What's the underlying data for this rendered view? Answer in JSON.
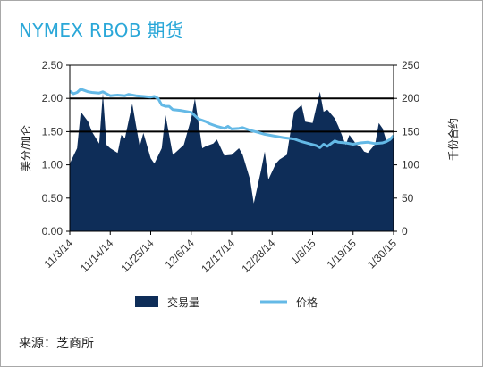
{
  "title": "NYMEX RBOB 期货",
  "source": "来源：芝商所",
  "colors": {
    "volume": "#0e2d58",
    "price": "#64b9e6",
    "title": "#2aa7d8",
    "grid": "#000000"
  },
  "chart_data": {
    "type": "area",
    "title": "NYMEX RBOB 期货",
    "x_tick_labels": [
      "11/3/14",
      "11/14/14",
      "11/25/14",
      "12/6/14",
      "12/17/14",
      "12/28/14",
      "1/8/15",
      "1/19/15",
      "1/30/15"
    ],
    "ylabel_left": "美分/加仑",
    "ylabel_right": "千份合约",
    "ylim_left": [
      0,
      2.5
    ],
    "ylim_right": [
      0,
      250
    ],
    "left_ticks": [
      "0.00",
      "0.50",
      "1.00",
      "1.50",
      "2.00",
      "2.50"
    ],
    "right_ticks": [
      "0",
      "50",
      "100",
      "150",
      "200",
      "250"
    ],
    "gridlines_left": [
      1.5,
      2.0
    ],
    "legend_position": "bottom-center",
    "series": [
      {
        "name": "交易量",
        "kind": "area",
        "axis": "right",
        "x_days": [
          0,
          2,
          3,
          5,
          6,
          8,
          9,
          10,
          11,
          13,
          14,
          15,
          17,
          18,
          19,
          20,
          22,
          23,
          25,
          26,
          28,
          29,
          31,
          33,
          34,
          36,
          37,
          39,
          40,
          42,
          44,
          46,
          47,
          49,
          50,
          52,
          53,
          54,
          56,
          57,
          59,
          60,
          61,
          63,
          64,
          66,
          68,
          69,
          70,
          72,
          73,
          75,
          76,
          78,
          79,
          80,
          81,
          83,
          84,
          85,
          86,
          87,
          88
        ],
        "values": [
          102,
          125,
          180,
          165,
          150,
          132,
          208,
          130,
          125,
          118,
          145,
          140,
          192,
          160,
          128,
          148,
          110,
          102,
          125,
          175,
          115,
          120,
          130,
          170,
          200,
          125,
          128,
          132,
          138,
          114,
          115,
          125,
          115,
          78,
          42,
          92,
          120,
          78,
          102,
          108,
          115,
          150,
          180,
          190,
          165,
          163,
          210,
          180,
          183,
          170,
          158,
          130,
          145,
          130,
          128,
          120,
          118,
          131,
          163,
          155,
          137,
          140,
          142
        ]
      },
      {
        "name": "价格",
        "kind": "line",
        "axis": "left",
        "x_days": [
          0,
          1,
          2,
          3,
          5,
          6,
          8,
          9,
          10,
          11,
          13,
          15,
          16,
          18,
          20,
          22,
          23,
          24,
          25,
          26,
          27,
          28,
          30,
          31,
          33,
          35,
          37,
          38,
          39,
          40,
          42,
          43,
          44,
          46,
          47,
          49,
          51,
          53,
          56,
          58,
          61,
          63,
          65,
          67,
          68,
          69,
          70,
          72,
          73,
          75,
          77,
          79,
          81,
          83,
          85,
          86,
          87,
          88
        ],
        "values": [
          2.11,
          2.07,
          2.09,
          2.14,
          2.1,
          2.09,
          2.08,
          2.1,
          2.07,
          2.04,
          2.05,
          2.04,
          2.06,
          2.04,
          2.03,
          2.02,
          2.03,
          2.0,
          1.9,
          1.88,
          1.88,
          1.83,
          1.82,
          1.81,
          1.79,
          1.69,
          1.65,
          1.62,
          1.6,
          1.58,
          1.55,
          1.58,
          1.54,
          1.55,
          1.56,
          1.52,
          1.49,
          1.46,
          1.43,
          1.41,
          1.39,
          1.35,
          1.32,
          1.29,
          1.26,
          1.31,
          1.28,
          1.36,
          1.34,
          1.33,
          1.31,
          1.33,
          1.34,
          1.32,
          1.33,
          1.35,
          1.38,
          1.44
        ]
      }
    ]
  }
}
